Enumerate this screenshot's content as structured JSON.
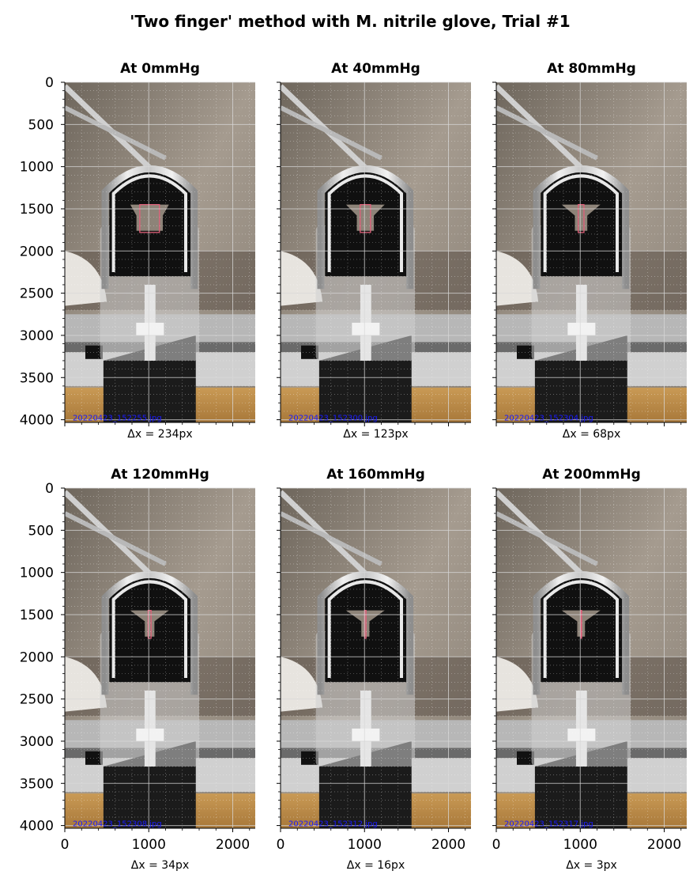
{
  "figure": {
    "title": "'Two finger' method with M. nitrile glove, Trial #1"
  },
  "colors": {
    "gap_overlay": "#e0607a",
    "filename_text": "#1a1aff",
    "grid": "#d8d8d8",
    "photo_background": "#9c9286",
    "device_frame": "#d9d9d9",
    "device_dark": "#101010",
    "floor_wood": "#b98a45"
  },
  "chart_data": [
    {
      "type": "image",
      "title": "At 0mmHg",
      "xlabel": "Δx = 234px",
      "filename": "20220423_152255.jpg",
      "gap_px": 234,
      "xlim": [
        0,
        2268
      ],
      "ylim": [
        4032,
        0
      ],
      "xticks": [
        0,
        1000,
        2000
      ],
      "yticks": [
        0,
        500,
        1000,
        1500,
        2000,
        2500,
        3000,
        3500,
        4000
      ],
      "grid": true
    },
    {
      "type": "image",
      "title": "At 40mmHg",
      "xlabel": "Δx = 123px",
      "filename": "20220423_152300.jpg",
      "gap_px": 123,
      "xlim": [
        0,
        2268
      ],
      "ylim": [
        4032,
        0
      ],
      "xticks": [
        0,
        1000,
        2000
      ],
      "yticks": [
        0,
        500,
        1000,
        1500,
        2000,
        2500,
        3000,
        3500,
        4000
      ],
      "grid": true
    },
    {
      "type": "image",
      "title": "At 80mmHg",
      "xlabel": "Δx = 68px",
      "filename": "20220423_152304.jpg",
      "gap_px": 68,
      "xlim": [
        0,
        2268
      ],
      "ylim": [
        4032,
        0
      ],
      "xticks": [
        0,
        1000,
        2000
      ],
      "yticks": [
        0,
        500,
        1000,
        1500,
        2000,
        2500,
        3000,
        3500,
        4000
      ],
      "grid": true
    },
    {
      "type": "image",
      "title": "At 120mmHg",
      "xlabel": "Δx = 34px",
      "filename": "20220423_152308.jpg",
      "gap_px": 34,
      "xlim": [
        0,
        2268
      ],
      "ylim": [
        4032,
        0
      ],
      "xticks": [
        0,
        1000,
        2000
      ],
      "yticks": [
        0,
        500,
        1000,
        1500,
        2000,
        2500,
        3000,
        3500,
        4000
      ],
      "grid": true
    },
    {
      "type": "image",
      "title": "At 160mmHg",
      "xlabel": "Δx = 16px",
      "filename": "20220423_152312.jpg",
      "gap_px": 16,
      "xlim": [
        0,
        2268
      ],
      "ylim": [
        4032,
        0
      ],
      "xticks": [
        0,
        1000,
        2000
      ],
      "yticks": [
        0,
        500,
        1000,
        1500,
        2000,
        2500,
        3000,
        3500,
        4000
      ],
      "grid": true
    },
    {
      "type": "image",
      "title": "At 200mmHg",
      "xlabel": "Δx = 3px",
      "filename": "20220423_152317.jpg",
      "gap_px": 3,
      "xlim": [
        0,
        2268
      ],
      "ylim": [
        4032,
        0
      ],
      "xticks": [
        0,
        1000,
        2000
      ],
      "yticks": [
        0,
        500,
        1000,
        1500,
        2000,
        2500,
        3000,
        3500,
        4000
      ],
      "grid": true
    }
  ]
}
